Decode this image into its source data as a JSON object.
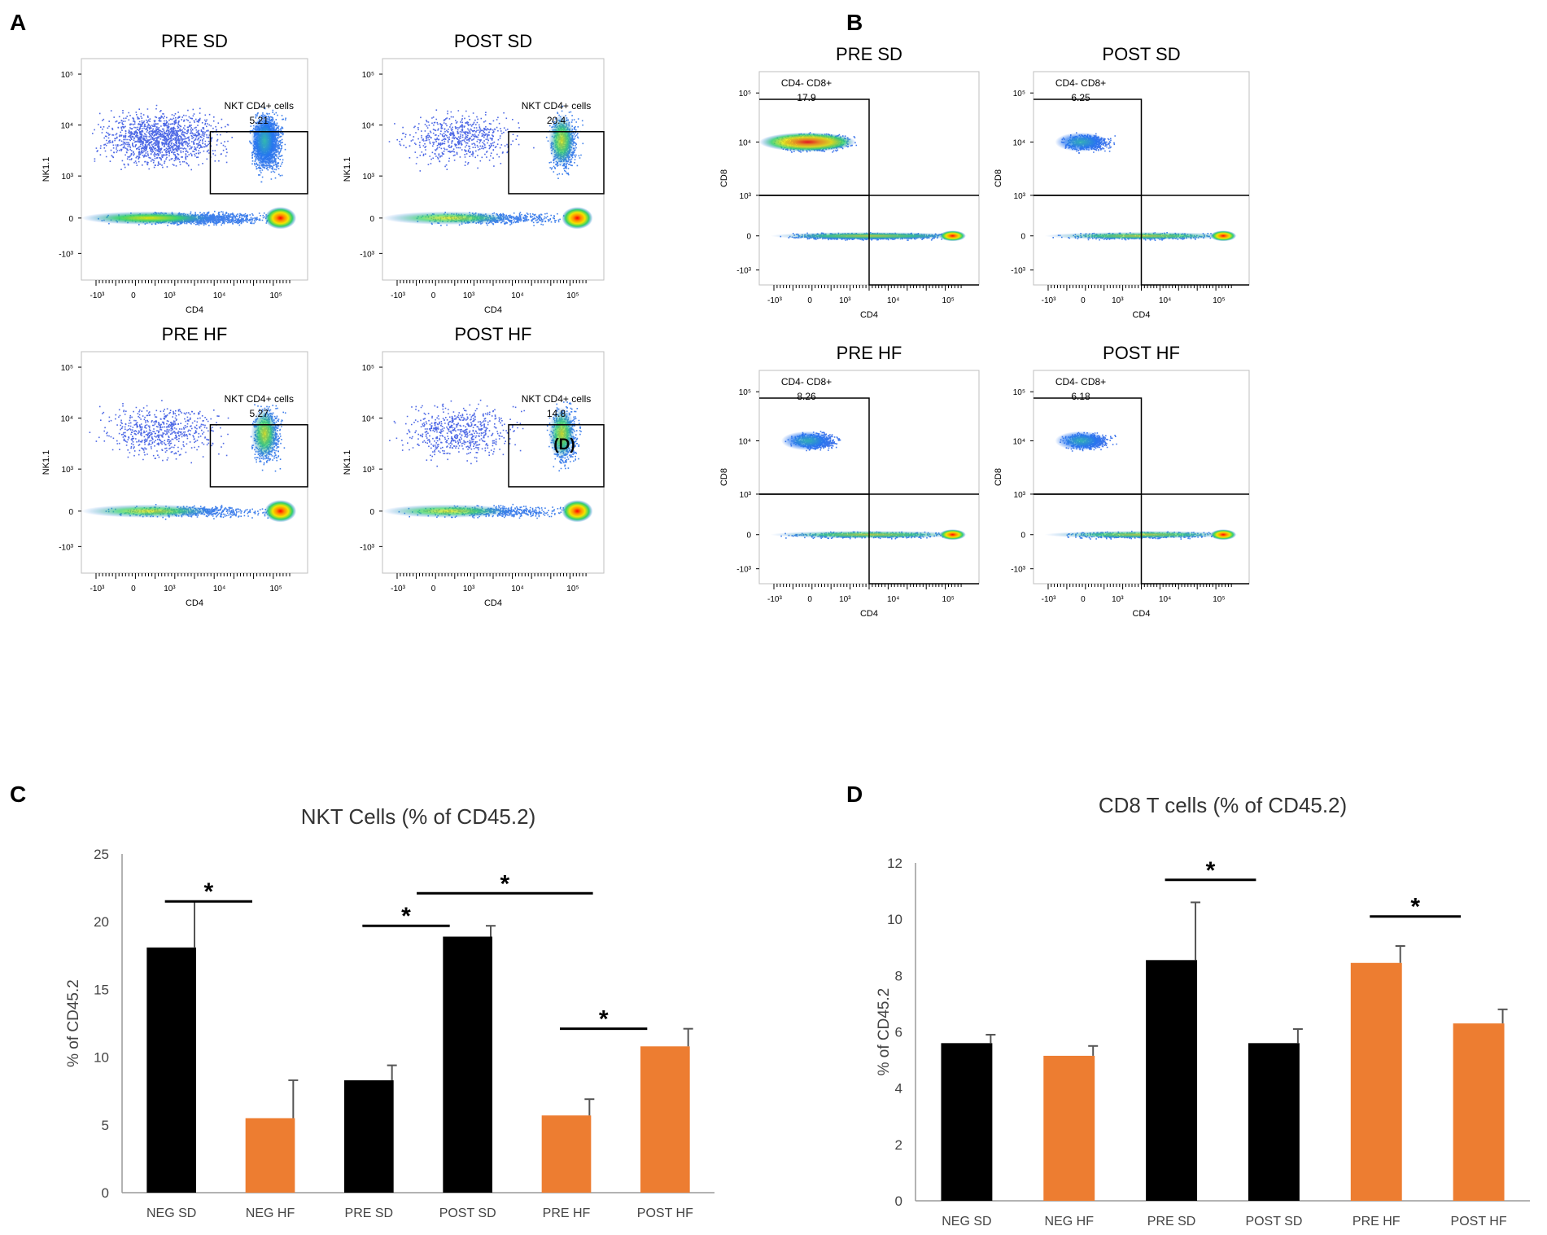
{
  "panel_letters": {
    "a": "A",
    "b": "B",
    "c": "C",
    "d": "D"
  },
  "colors": {
    "sd": "#000000",
    "hf": "#ED7D31",
    "box": "#000000"
  },
  "chart_data": [
    {
      "id": "A",
      "type": "scatter",
      "subtype": "flow-cytometry-density",
      "xlabel": "CD4",
      "ylabel": "NK1.1",
      "xticks": [
        "-10³",
        "0",
        "10³",
        "10⁴",
        "10⁵"
      ],
      "yticks": [
        "10⁵",
        "10⁴",
        "10³",
        "0",
        "-10³"
      ],
      "gate_label": "NKT CD4+ cells",
      "plots": [
        {
          "title": "PRE SD",
          "gate_value": "5.21"
        },
        {
          "title": "POST SD",
          "gate_value": "20.4"
        },
        {
          "title": "PRE HF",
          "gate_value": "5.27"
        },
        {
          "title": "POST HF",
          "gate_value": "14.8",
          "annotation": "(D)"
        }
      ]
    },
    {
      "id": "B",
      "type": "scatter",
      "subtype": "flow-cytometry-density",
      "xlabel": "CD4",
      "ylabel": "CD8",
      "xticks": [
        "-10³",
        "0",
        "10³",
        "10⁴",
        "10⁵"
      ],
      "yticks": [
        "10⁵",
        "10⁴",
        "10³",
        "0",
        "-10³"
      ],
      "gate_label": "CD4- CD8+",
      "plots": [
        {
          "title": "PRE SD",
          "gate_value": "17.9"
        },
        {
          "title": "POST SD",
          "gate_value": "6.25"
        },
        {
          "title": "PRE HF",
          "gate_value": "8.26"
        },
        {
          "title": "POST HF",
          "gate_value": "6.18"
        }
      ]
    },
    {
      "id": "C",
      "type": "bar",
      "title": "NKT Cells (% of CD45.2)",
      "xlabel": "",
      "ylabel": "% of CD45.2",
      "ylim": [
        0,
        25
      ],
      "yticks": [
        0,
        5,
        10,
        15,
        20,
        25
      ],
      "categories": [
        "NEG SD",
        "NEG HF",
        "PRE SD",
        "POST SD",
        "PRE HF",
        "POST HF"
      ],
      "values": [
        18.1,
        5.5,
        8.3,
        18.9,
        5.7,
        10.8
      ],
      "errors": [
        3.4,
        2.8,
        1.1,
        0.8,
        1.2,
        1.3
      ],
      "groups": [
        "SD",
        "HF",
        "SD",
        "SD",
        "HF",
        "HF"
      ],
      "significance": [
        {
          "from": 0,
          "to": 1,
          "level": 21.5,
          "label": "*"
        },
        {
          "from": 2,
          "to": 3,
          "level": 19.7,
          "label": "*"
        },
        {
          "from": 2.55,
          "to": 4.45,
          "level": 22.1,
          "label": "*"
        },
        {
          "from": 4,
          "to": 5,
          "level": 12.1,
          "label": "*"
        }
      ]
    },
    {
      "id": "D",
      "type": "bar",
      "title": "CD8 T cells (% of CD45.2)",
      "xlabel": "",
      "ylabel": "% of CD45.2",
      "ylim": [
        0,
        12
      ],
      "yticks": [
        0,
        2,
        4,
        6,
        8,
        10,
        12
      ],
      "categories": [
        "NEG SD",
        "NEG HF",
        "PRE SD",
        "POST SD",
        "PRE HF",
        "POST HF"
      ],
      "values": [
        5.6,
        5.15,
        8.55,
        5.6,
        8.45,
        6.3
      ],
      "errors": [
        0.3,
        0.35,
        2.05,
        0.5,
        0.6,
        0.5
      ],
      "groups": [
        "SD",
        "HF",
        "SD",
        "SD",
        "HF",
        "HF"
      ],
      "significance": [
        {
          "from": 2,
          "to": 3,
          "level": 11.4,
          "label": "*"
        },
        {
          "from": 4,
          "to": 5,
          "level": 10.1,
          "label": "*"
        }
      ]
    }
  ]
}
